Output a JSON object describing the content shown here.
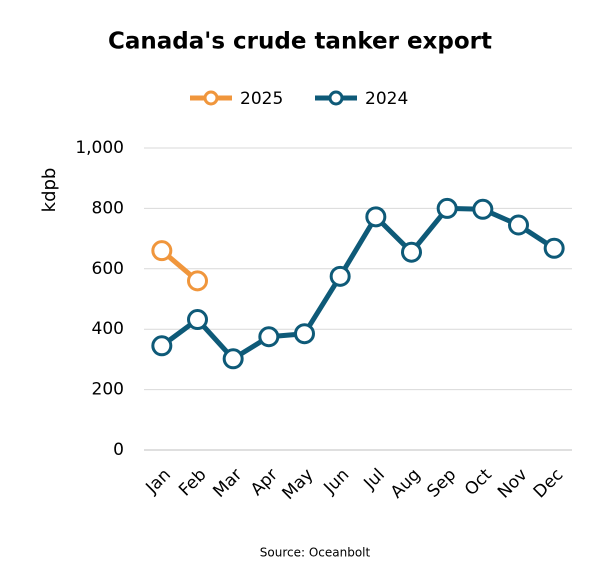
{
  "chart_data": {
    "type": "line",
    "title": "Canada's crude tanker export",
    "y_label": "kdpb",
    "source": "Source: Oceanbolt",
    "categories": [
      "Jan",
      "Feb",
      "Mar",
      "Apr",
      "May",
      "Jun",
      "Jul",
      "Aug",
      "Sep",
      "Oct",
      "Nov",
      "Dec"
    ],
    "series": [
      {
        "name": "2025",
        "color": "#f0963c",
        "values": [
          660,
          560,
          null,
          null,
          null,
          null,
          null,
          null,
          null,
          null,
          null,
          null
        ]
      },
      {
        "name": "2024",
        "color": "#0e5a78",
        "values": [
          345,
          432,
          302,
          375,
          385,
          575,
          772,
          655,
          800,
          797,
          745,
          668
        ]
      }
    ],
    "ylim": [
      0,
      1000
    ],
    "yticks": [
      0,
      200,
      400,
      600,
      800,
      {
        "value": 1000,
        "label": "1,000"
      }
    ],
    "grid": true
  }
}
